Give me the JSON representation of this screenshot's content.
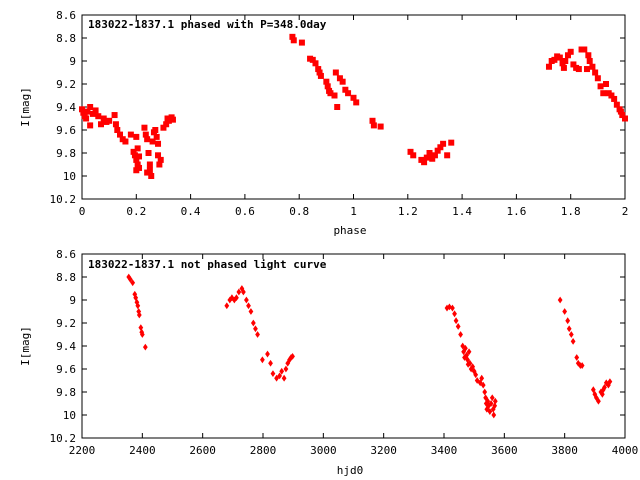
{
  "chart_data": [
    {
      "type": "scatter",
      "title": "183022-1837.1 phased with P=348.0day",
      "xlabel": "phase",
      "ylabel": "I[mag]",
      "xlim": [
        0,
        2
      ],
      "ylim": [
        10.2,
        8.6
      ],
      "y_inverted": true,
      "grid": false,
      "legend": "none",
      "marker_color": "#ff0000",
      "marker_style": "filled-square",
      "xticks": [
        0,
        0.2,
        0.4,
        0.6,
        0.8,
        1,
        1.2,
        1.4,
        1.6,
        1.8,
        2
      ],
      "xtick_labels": [
        "0",
        "0.2",
        "0.4",
        "0.6",
        "0.8",
        "1",
        "1.2",
        "1.4",
        "1.6",
        "1.8",
        "2"
      ],
      "yticks": [
        8.6,
        8.8,
        9,
        9.2,
        9.4,
        9.6,
        9.8,
        10,
        10.2
      ],
      "ytick_labels": [
        "8.6",
        "8.8",
        "9",
        "9.2",
        "9.4",
        "9.6",
        "9.8",
        "10",
        "10.2"
      ],
      "points": [
        [
          0.0,
          9.42
        ],
        [
          0.005,
          9.45
        ],
        [
          0.01,
          9.48
        ],
        [
          0.015,
          9.5
        ],
        [
          0.02,
          9.44
        ],
        [
          0.03,
          9.4
        ],
        [
          0.04,
          9.46
        ],
        [
          0.05,
          9.43
        ],
        [
          0.06,
          9.48
        ],
        [
          0.07,
          9.55
        ],
        [
          0.03,
          9.56
        ],
        [
          0.08,
          9.5
        ],
        [
          0.09,
          9.53
        ],
        [
          0.1,
          9.52
        ],
        [
          0.12,
          9.47
        ],
        [
          0.125,
          9.55
        ],
        [
          0.13,
          9.6
        ],
        [
          0.14,
          9.64
        ],
        [
          0.15,
          9.68
        ],
        [
          0.16,
          9.7
        ],
        [
          0.18,
          9.64
        ],
        [
          0.2,
          9.66
        ],
        [
          0.19,
          9.79
        ],
        [
          0.195,
          9.82
        ],
        [
          0.2,
          9.86
        ],
        [
          0.205,
          9.9
        ],
        [
          0.21,
          9.93
        ],
        [
          0.2,
          9.95
        ],
        [
          0.21,
          9.83
        ],
        [
          0.205,
          9.76
        ],
        [
          0.23,
          9.58
        ],
        [
          0.235,
          9.64
        ],
        [
          0.24,
          9.68
        ],
        [
          0.245,
          9.8
        ],
        [
          0.25,
          9.9
        ],
        [
          0.25,
          9.95
        ],
        [
          0.255,
          10.0
        ],
        [
          0.24,
          9.97
        ],
        [
          0.26,
          9.7
        ],
        [
          0.265,
          9.62
        ],
        [
          0.27,
          9.6
        ],
        [
          0.275,
          9.66
        ],
        [
          0.28,
          9.72
        ],
        [
          0.28,
          9.82
        ],
        [
          0.285,
          9.9
        ],
        [
          0.29,
          9.86
        ],
        [
          0.3,
          9.58
        ],
        [
          0.31,
          9.55
        ],
        [
          0.315,
          9.5
        ],
        [
          0.32,
          9.52
        ],
        [
          0.33,
          9.49
        ],
        [
          0.335,
          9.51
        ],
        [
          0.775,
          8.79
        ],
        [
          0.78,
          8.82
        ],
        [
          0.81,
          8.84
        ],
        [
          0.84,
          8.98
        ],
        [
          0.85,
          8.99
        ],
        [
          0.86,
          9.02
        ],
        [
          0.87,
          9.07
        ],
        [
          0.875,
          9.1
        ],
        [
          0.88,
          9.13
        ],
        [
          0.9,
          9.18
        ],
        [
          0.905,
          9.22
        ],
        [
          0.91,
          9.26
        ],
        [
          0.915,
          9.28
        ],
        [
          0.93,
          9.3
        ],
        [
          0.935,
          9.1
        ],
        [
          0.94,
          9.4
        ],
        [
          0.95,
          9.15
        ],
        [
          0.96,
          9.18
        ],
        [
          0.97,
          9.25
        ],
        [
          0.98,
          9.28
        ],
        [
          1.0,
          9.32
        ],
        [
          1.01,
          9.36
        ],
        [
          1.07,
          9.52
        ],
        [
          1.075,
          9.56
        ],
        [
          1.1,
          9.57
        ],
        [
          1.21,
          9.79
        ],
        [
          1.22,
          9.82
        ],
        [
          1.25,
          9.86
        ],
        [
          1.26,
          9.88
        ],
        [
          1.27,
          9.84
        ],
        [
          1.28,
          9.8
        ],
        [
          1.29,
          9.85
        ],
        [
          1.3,
          9.82
        ],
        [
          1.31,
          9.78
        ],
        [
          1.32,
          9.75
        ],
        [
          1.33,
          9.72
        ],
        [
          1.345,
          9.82
        ],
        [
          1.36,
          9.71
        ],
        [
          1.72,
          9.05
        ],
        [
          1.73,
          9.0
        ],
        [
          1.74,
          8.99
        ],
        [
          1.75,
          8.96
        ],
        [
          1.76,
          8.97
        ],
        [
          1.77,
          9.02
        ],
        [
          1.775,
          9.06
        ],
        [
          1.78,
          9.0
        ],
        [
          1.79,
          8.95
        ],
        [
          1.8,
          8.92
        ],
        [
          1.81,
          9.03
        ],
        [
          1.82,
          9.06
        ],
        [
          1.83,
          9.07
        ],
        [
          1.84,
          8.9
        ],
        [
          1.85,
          8.9
        ],
        [
          1.86,
          9.07
        ],
        [
          1.865,
          8.95
        ],
        [
          1.87,
          9.0
        ],
        [
          1.88,
          9.05
        ],
        [
          1.89,
          9.1
        ],
        [
          1.9,
          9.15
        ],
        [
          1.91,
          9.22
        ],
        [
          1.92,
          9.28
        ],
        [
          1.93,
          9.2
        ],
        [
          1.94,
          9.28
        ],
        [
          1.95,
          9.3
        ],
        [
          1.96,
          9.33
        ],
        [
          1.97,
          9.38
        ],
        [
          1.98,
          9.42
        ],
        [
          1.99,
          9.47
        ],
        [
          2.0,
          9.5
        ],
        [
          1.985,
          9.44
        ]
      ]
    },
    {
      "type": "scatter",
      "title": "183022-1837.1 not phased light curve",
      "xlabel": "hjd0",
      "ylabel": "I[mag]",
      "xlim": [
        2200,
        4000
      ],
      "ylim": [
        10.2,
        8.6
      ],
      "y_inverted": true,
      "grid": false,
      "legend": "none",
      "marker_color": "#ff0000",
      "marker_style": "small-diamond",
      "xticks": [
        2200,
        2400,
        2600,
        2800,
        3000,
        3200,
        3400,
        3600,
        3800,
        4000
      ],
      "xtick_labels": [
        "2200",
        "2400",
        "2600",
        "2800",
        "3000",
        "3200",
        "3400",
        "3600",
        "3800",
        "4000"
      ],
      "yticks": [
        8.6,
        8.8,
        9,
        9.2,
        9.4,
        9.6,
        9.8,
        10,
        10.2
      ],
      "ytick_labels": [
        "8.6",
        "8.8",
        "9",
        "9.2",
        "9.4",
        "9.6",
        "9.8",
        "10",
        "10.2"
      ],
      "points": [
        [
          2355,
          8.8
        ],
        [
          2360,
          8.82
        ],
        [
          2368,
          8.85
        ],
        [
          2375,
          8.95
        ],
        [
          2378,
          8.98
        ],
        [
          2382,
          9.02
        ],
        [
          2385,
          9.05
        ],
        [
          2388,
          9.1
        ],
        [
          2390,
          9.13
        ],
        [
          2395,
          9.24
        ],
        [
          2398,
          9.28
        ],
        [
          2400,
          9.3
        ],
        [
          2410,
          9.41
        ],
        [
          2680,
          9.05
        ],
        [
          2690,
          9.0
        ],
        [
          2697,
          8.98
        ],
        [
          2705,
          9.0
        ],
        [
          2712,
          8.98
        ],
        [
          2720,
          8.93
        ],
        [
          2730,
          8.9
        ],
        [
          2735,
          8.93
        ],
        [
          2745,
          9.0
        ],
        [
          2752,
          9.05
        ],
        [
          2760,
          9.1
        ],
        [
          2768,
          9.2
        ],
        [
          2775,
          9.25
        ],
        [
          2782,
          9.3
        ],
        [
          2798,
          9.52
        ],
        [
          2815,
          9.47
        ],
        [
          2825,
          9.55
        ],
        [
          2833,
          9.64
        ],
        [
          2845,
          9.68
        ],
        [
          2855,
          9.66
        ],
        [
          2862,
          9.62
        ],
        [
          2870,
          9.68
        ],
        [
          2876,
          9.6
        ],
        [
          2882,
          9.55
        ],
        [
          2888,
          9.52
        ],
        [
          2893,
          9.5
        ],
        [
          2898,
          9.49
        ],
        [
          3410,
          9.07
        ],
        [
          3418,
          9.06
        ],
        [
          3428,
          9.07
        ],
        [
          3435,
          9.12
        ],
        [
          3440,
          9.18
        ],
        [
          3447,
          9.23
        ],
        [
          3455,
          9.3
        ],
        [
          3462,
          9.4
        ],
        [
          3465,
          9.45
        ],
        [
          3468,
          9.5
        ],
        [
          3471,
          9.42
        ],
        [
          3475,
          9.48
        ],
        [
          3478,
          9.52
        ],
        [
          3480,
          9.56
        ],
        [
          3483,
          9.45
        ],
        [
          3486,
          9.55
        ],
        [
          3490,
          9.6
        ],
        [
          3495,
          9.58
        ],
        [
          3500,
          9.62
        ],
        [
          3505,
          9.65
        ],
        [
          3510,
          9.7
        ],
        [
          3520,
          9.72
        ],
        [
          3525,
          9.68
        ],
        [
          3530,
          9.74
        ],
        [
          3535,
          9.8
        ],
        [
          3538,
          9.85
        ],
        [
          3540,
          9.9
        ],
        [
          3542,
          9.95
        ],
        [
          3545,
          9.88
        ],
        [
          3548,
          9.92
        ],
        [
          3552,
          9.97
        ],
        [
          3556,
          9.9
        ],
        [
          3560,
          9.85
        ],
        [
          3563,
          9.95
        ],
        [
          3565,
          10.0
        ],
        [
          3568,
          9.92
        ],
        [
          3570,
          9.88
        ],
        [
          3785,
          9.0
        ],
        [
          3800,
          9.1
        ],
        [
          3810,
          9.18
        ],
        [
          3815,
          9.25
        ],
        [
          3822,
          9.3
        ],
        [
          3828,
          9.36
        ],
        [
          3840,
          9.5
        ],
        [
          3845,
          9.55
        ],
        [
          3852,
          9.57
        ],
        [
          3858,
          9.57
        ],
        [
          3895,
          9.78
        ],
        [
          3900,
          9.82
        ],
        [
          3905,
          9.85
        ],
        [
          3912,
          9.88
        ],
        [
          3920,
          9.8
        ],
        [
          3925,
          9.82
        ],
        [
          3928,
          9.78
        ],
        [
          3932,
          9.76
        ],
        [
          3938,
          9.72
        ],
        [
          3945,
          9.74
        ],
        [
          3950,
          9.71
        ]
      ]
    }
  ]
}
